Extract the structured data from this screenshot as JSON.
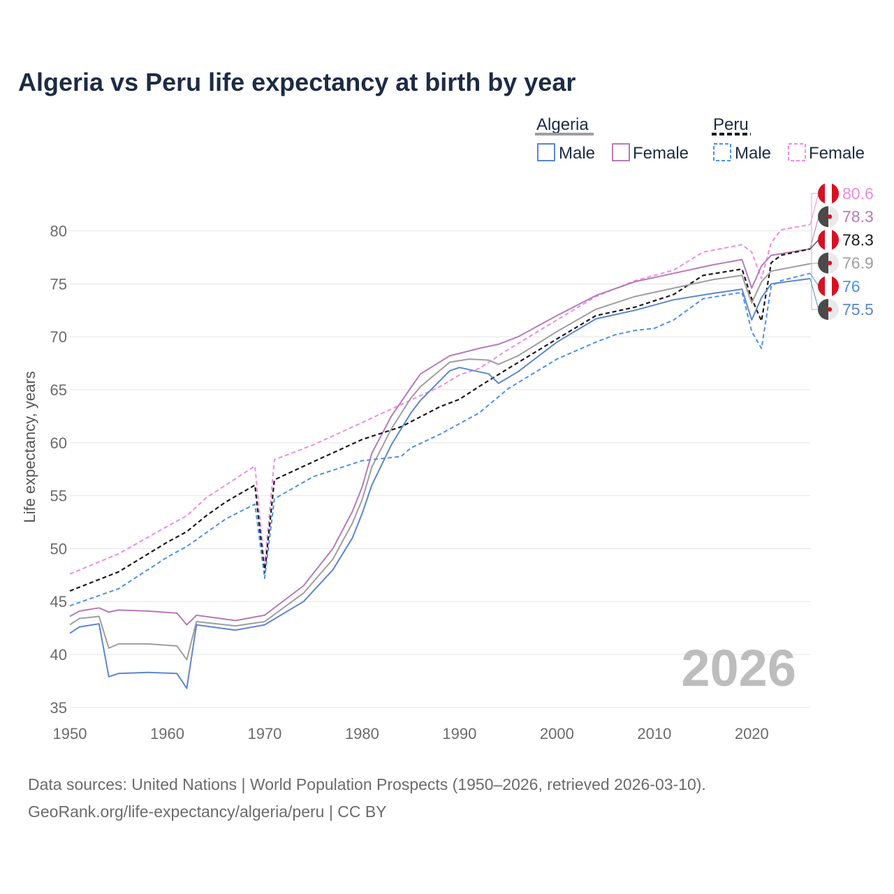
{
  "title": "Algeria vs Peru life expectancy at birth by year",
  "colors": {
    "alg_total": "#9e9e9e",
    "alg_male": "#5b86cd",
    "alg_female": "#b67ab8",
    "peru_total": "#1a1a1a",
    "peru_male": "#4a8ff0",
    "peru_female": "#f08be0",
    "peru_flag_red": "#d91023",
    "alg_flag_dark": "#4a4a4a"
  },
  "legend": {
    "algeria": "Algeria",
    "peru": "Peru",
    "male": "Male",
    "female": "Female"
  },
  "year_watermark": "2026",
  "sources": [
    "Data sources: United Nations | World Population Prospects (1950–2026, retrieved 2026-03-10).",
    "GeoRank.org/life-expectancy/algeria/peru | CC BY"
  ],
  "chart_data": {
    "type": "line",
    "title": "Algeria vs Peru life expectancy at birth by year",
    "xlabel": "",
    "ylabel": "Life expectancy, years",
    "xlim": [
      1950,
      2026
    ],
    "ylim": [
      34,
      84
    ],
    "xticks": [
      1950,
      1960,
      1970,
      1980,
      1990,
      2000,
      2010,
      2020
    ],
    "yticks": [
      35,
      40,
      45,
      50,
      55,
      60,
      65,
      70,
      75,
      80
    ],
    "grid": true,
    "legend_position": "top-right",
    "series": [
      {
        "name": "Peru Female",
        "key": "peru_female",
        "color": "#f08be0",
        "dash": true,
        "width": 2,
        "end_label": "80.6",
        "points": [
          [
            1950,
            47.6
          ],
          [
            1955,
            49.5
          ],
          [
            1960,
            52.1
          ],
          [
            1962,
            53.1
          ],
          [
            1964,
            54.8
          ],
          [
            1966,
            56.0
          ],
          [
            1969,
            57.8
          ],
          [
            1970,
            48.4
          ],
          [
            1971,
            58.4
          ],
          [
            1975,
            59.8
          ],
          [
            1980,
            61.9
          ],
          [
            1984,
            63.6
          ],
          [
            1988,
            65.3
          ],
          [
            1990,
            66.4
          ],
          [
            1992,
            67.0
          ],
          [
            1995,
            68.8
          ],
          [
            2000,
            71.6
          ],
          [
            2004,
            73.8
          ],
          [
            2008,
            75.3
          ],
          [
            2012,
            76.3
          ],
          [
            2015,
            78.0
          ],
          [
            2019,
            78.7
          ],
          [
            2020,
            78.0
          ],
          [
            2021,
            75.5
          ],
          [
            2022,
            78.9
          ],
          [
            2023,
            80.1
          ],
          [
            2026,
            80.6
          ]
        ]
      },
      {
        "name": "Algeria Female",
        "key": "alg_female",
        "color": "#b67ab8",
        "dash": false,
        "width": 2,
        "end_label": "78.3",
        "points": [
          [
            1950,
            43.6
          ],
          [
            1951,
            44.1
          ],
          [
            1953,
            44.4
          ],
          [
            1954,
            44.0
          ],
          [
            1955,
            44.2
          ],
          [
            1958,
            44.1
          ],
          [
            1961,
            43.9
          ],
          [
            1962,
            42.8
          ],
          [
            1963,
            43.7
          ],
          [
            1967,
            43.2
          ],
          [
            1970,
            43.7
          ],
          [
            1974,
            46.5
          ],
          [
            1977,
            50.0
          ],
          [
            1979,
            53.5
          ],
          [
            1980,
            55.8
          ],
          [
            1981,
            59.0
          ],
          [
            1983,
            62.5
          ],
          [
            1985,
            65.2
          ],
          [
            1986,
            66.5
          ],
          [
            1989,
            68.2
          ],
          [
            1992,
            68.9
          ],
          [
            1994,
            69.3
          ],
          [
            1996,
            70.0
          ],
          [
            2000,
            72.0
          ],
          [
            2004,
            73.9
          ],
          [
            2008,
            75.2
          ],
          [
            2012,
            76.0
          ],
          [
            2016,
            76.8
          ],
          [
            2019,
            77.3
          ],
          [
            2020,
            74.6
          ],
          [
            2021,
            76.7
          ],
          [
            2022,
            77.7
          ],
          [
            2026,
            78.3
          ]
        ]
      },
      {
        "name": "Peru",
        "key": "peru_total",
        "color": "#1a1a1a",
        "dash": true,
        "width": 2.2,
        "end_label": "78.3",
        "points": [
          [
            1950,
            46.0
          ],
          [
            1955,
            47.8
          ],
          [
            1960,
            50.6
          ],
          [
            1962,
            51.6
          ],
          [
            1964,
            53.1
          ],
          [
            1966,
            54.4
          ],
          [
            1969,
            56.0
          ],
          [
            1970,
            47.7
          ],
          [
            1971,
            56.5
          ],
          [
            1975,
            58.2
          ],
          [
            1980,
            60.3
          ],
          [
            1984,
            61.5
          ],
          [
            1988,
            63.4
          ],
          [
            1990,
            64.1
          ],
          [
            1992,
            65.3
          ],
          [
            1995,
            67.0
          ],
          [
            2000,
            69.8
          ],
          [
            2004,
            72.0
          ],
          [
            2008,
            72.8
          ],
          [
            2012,
            74.0
          ],
          [
            2015,
            75.8
          ],
          [
            2019,
            76.4
          ],
          [
            2020,
            73.6
          ],
          [
            2021,
            71.5
          ],
          [
            2022,
            77.0
          ],
          [
            2023,
            77.7
          ],
          [
            2026,
            78.3
          ]
        ]
      },
      {
        "name": "Algeria",
        "key": "alg_total",
        "color": "#9e9e9e",
        "dash": false,
        "width": 2,
        "end_label": "76.9",
        "points": [
          [
            1950,
            42.8
          ],
          [
            1951,
            43.4
          ],
          [
            1953,
            43.6
          ],
          [
            1954,
            40.6
          ],
          [
            1955,
            41.0
          ],
          [
            1958,
            41.0
          ],
          [
            1961,
            40.8
          ],
          [
            1962,
            39.5
          ],
          [
            1963,
            43.1
          ],
          [
            1967,
            42.7
          ],
          [
            1970,
            43.1
          ],
          [
            1974,
            45.8
          ],
          [
            1977,
            49.0
          ],
          [
            1979,
            52.4
          ],
          [
            1980,
            54.6
          ],
          [
            1981,
            57.7
          ],
          [
            1983,
            61.3
          ],
          [
            1985,
            64.2
          ],
          [
            1986,
            65.3
          ],
          [
            1989,
            67.6
          ],
          [
            1991,
            67.9
          ],
          [
            1993,
            67.8
          ],
          [
            1994,
            67.4
          ],
          [
            1996,
            68.2
          ],
          [
            2000,
            70.5
          ],
          [
            2004,
            72.6
          ],
          [
            2008,
            73.8
          ],
          [
            2012,
            74.6
          ],
          [
            2016,
            75.4
          ],
          [
            2019,
            75.8
          ],
          [
            2020,
            73.2
          ],
          [
            2021,
            75.2
          ],
          [
            2022,
            76.2
          ],
          [
            2026,
            76.9
          ]
        ]
      },
      {
        "name": "Peru Male",
        "key": "peru_male",
        "color": "#4a8ff0",
        "dash": true,
        "width": 2,
        "end_label": "76",
        "points": [
          [
            1950,
            44.6
          ],
          [
            1955,
            46.2
          ],
          [
            1960,
            49.2
          ],
          [
            1962,
            50.2
          ],
          [
            1964,
            51.5
          ],
          [
            1966,
            52.8
          ],
          [
            1969,
            54.2
          ],
          [
            1970,
            47.2
          ],
          [
            1971,
            54.7
          ],
          [
            1975,
            56.8
          ],
          [
            1980,
            58.3
          ],
          [
            1984,
            58.7
          ],
          [
            1985,
            59.5
          ],
          [
            1988,
            60.8
          ],
          [
            1990,
            61.8
          ],
          [
            1992,
            62.8
          ],
          [
            1995,
            65.1
          ],
          [
            2000,
            67.9
          ],
          [
            2004,
            69.5
          ],
          [
            2006,
            70.2
          ],
          [
            2008,
            70.6
          ],
          [
            2010,
            70.8
          ],
          [
            2012,
            71.6
          ],
          [
            2015,
            73.6
          ],
          [
            2019,
            74.2
          ],
          [
            2020,
            70.5
          ],
          [
            2021,
            68.9
          ],
          [
            2022,
            74.8
          ],
          [
            2023,
            75.3
          ],
          [
            2026,
            76.0
          ]
        ]
      },
      {
        "name": "Algeria Male",
        "key": "alg_male",
        "color": "#5b86cd",
        "dash": false,
        "width": 2,
        "end_label": "75.5",
        "points": [
          [
            1950,
            42.0
          ],
          [
            1951,
            42.6
          ],
          [
            1953,
            42.9
          ],
          [
            1954,
            37.9
          ],
          [
            1955,
            38.2
          ],
          [
            1958,
            38.3
          ],
          [
            1961,
            38.2
          ],
          [
            1962,
            36.8
          ],
          [
            1963,
            42.8
          ],
          [
            1967,
            42.3
          ],
          [
            1970,
            42.8
          ],
          [
            1974,
            45.0
          ],
          [
            1977,
            48.0
          ],
          [
            1979,
            51.0
          ],
          [
            1980,
            53.3
          ],
          [
            1981,
            56.0
          ],
          [
            1983,
            59.8
          ],
          [
            1985,
            62.8
          ],
          [
            1986,
            64.0
          ],
          [
            1989,
            66.8
          ],
          [
            1990,
            67.1
          ],
          [
            1993,
            66.5
          ],
          [
            1994,
            65.6
          ],
          [
            1996,
            66.7
          ],
          [
            2000,
            69.5
          ],
          [
            2004,
            71.7
          ],
          [
            2008,
            72.5
          ],
          [
            2012,
            73.5
          ],
          [
            2016,
            74.1
          ],
          [
            2019,
            74.5
          ],
          [
            2020,
            71.6
          ],
          [
            2021,
            73.7
          ],
          [
            2022,
            75.0
          ],
          [
            2026,
            75.5
          ]
        ]
      }
    ]
  }
}
